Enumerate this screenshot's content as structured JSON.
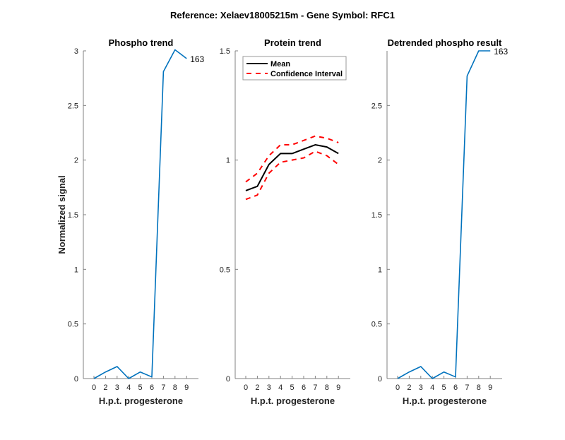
{
  "figure_title": "Reference:  Xelaev18005215m - Gene Symbol:  RFC1",
  "colors": {
    "phospho": "#0072BD",
    "mean": "#000000",
    "ci": "#FF0000",
    "axis": "#808080"
  },
  "chart_data": [
    {
      "type": "line",
      "title": "Phospho trend",
      "xlabel": "H.p.t. progesterone",
      "ylabel": "Normalized signal",
      "categories": [
        "0",
        "2",
        "3",
        "4",
        "5",
        "6",
        "7",
        "8",
        "9"
      ],
      "ylim": [
        0,
        3
      ],
      "yticks": [
        0,
        0.5,
        1,
        1.5,
        2,
        2.5,
        3
      ],
      "series": [
        {
          "name": "phospho",
          "values": [
            0,
            0.06,
            0.11,
            0,
            0.06,
            0.015,
            2.81,
            3.01,
            2.93
          ]
        }
      ],
      "end_label": "163"
    },
    {
      "type": "line",
      "title": "Protein trend",
      "xlabel": "H.p.t. progesterone",
      "ylabel": "",
      "categories": [
        "0",
        "2",
        "3",
        "4",
        "5",
        "6",
        "7",
        "8",
        "9"
      ],
      "ylim": [
        0,
        1.5
      ],
      "yticks": [
        0,
        0.5,
        1,
        1.5
      ],
      "legend": {
        "placement": "top-left",
        "entries": [
          "Mean",
          "Confidence Interval"
        ]
      },
      "series": [
        {
          "name": "Mean",
          "values": [
            0.86,
            0.88,
            0.98,
            1.03,
            1.03,
            1.05,
            1.07,
            1.06,
            1.03
          ]
        },
        {
          "name": "CI upper",
          "values": [
            0.9,
            0.94,
            1.02,
            1.07,
            1.07,
            1.09,
            1.11,
            1.1,
            1.08
          ]
        },
        {
          "name": "CI lower",
          "values": [
            0.82,
            0.84,
            0.94,
            0.99,
            1.0,
            1.01,
            1.04,
            1.02,
            0.98
          ]
        }
      ]
    },
    {
      "type": "line",
      "title": "Detrended phospho result",
      "xlabel": "H.p.t. progesterone",
      "ylabel": "",
      "categories": [
        "0",
        "2",
        "3",
        "4",
        "5",
        "6",
        "7",
        "8",
        "9"
      ],
      "ylim": [
        0,
        3
      ],
      "yticks": [
        0,
        0.5,
        1,
        1.5,
        2,
        2.5
      ],
      "series": [
        {
          "name": "detrended",
          "values": [
            0,
            0.06,
            0.11,
            0,
            0.06,
            0.015,
            2.77,
            3.0,
            3.0
          ]
        }
      ],
      "end_label": "163"
    }
  ]
}
